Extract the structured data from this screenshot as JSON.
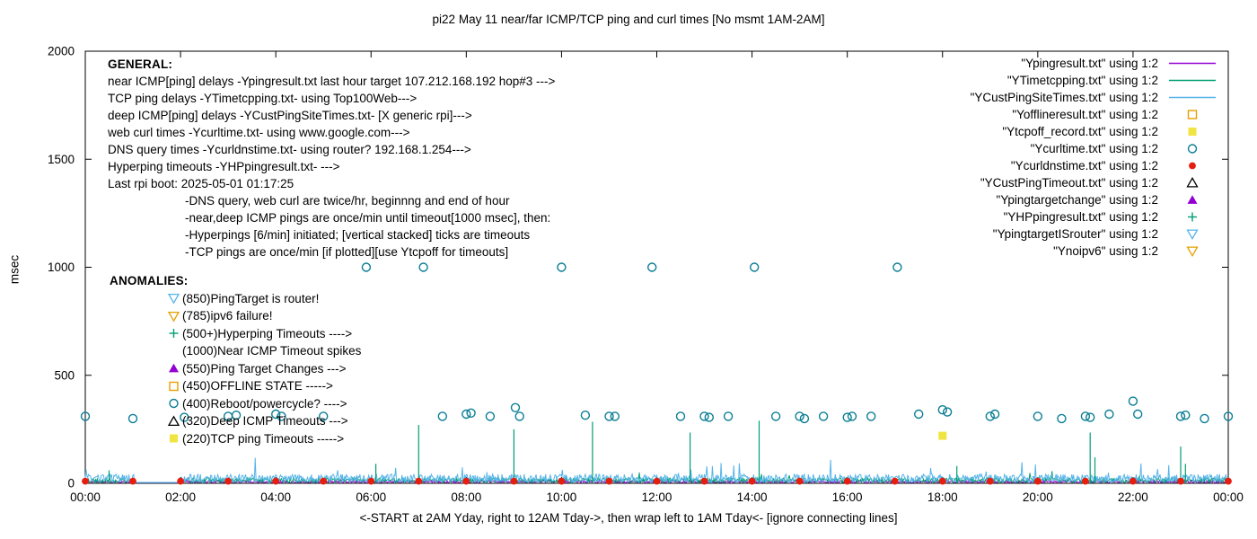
{
  "chart_data": {
    "type": "line+scatter",
    "title": "pi22 May 11  near/far ICMP/TCP ping and curl times [No msmt 1AM-2AM]",
    "ylabel": "msec",
    "xlabel": "<-START at 2AM Yday, right to 12AM Tday->, then wrap left to 1AM Tday<- [ignore connecting lines]",
    "ylim": [
      0,
      2000
    ],
    "yticks": [
      0,
      500,
      1000,
      1500,
      2000
    ],
    "xticks": [
      "00:00",
      "02:00",
      "04:00",
      "06:00",
      "08:00",
      "10:00",
      "12:00",
      "14:00",
      "16:00",
      "18:00",
      "20:00",
      "22:00",
      "00:00"
    ],
    "x_hours_range": [
      0,
      24
    ],
    "grid": false,
    "legend_position": "top-right-inside",
    "colors": {
      "purple": "#9400d3",
      "green": "#009e73",
      "lightblue": "#56b4e9",
      "orange": "#e69f00",
      "yellow": "#f0e442",
      "tealblue": "#0a7e94",
      "red": "#e51e10",
      "black": "#000000"
    },
    "legend": [
      {
        "label": "\"Ypingresult.txt\" using 1:2",
        "marker": "line",
        "color": "purple"
      },
      {
        "label": "\"YTimetcpping.txt\" using 1:2",
        "marker": "line",
        "color": "green"
      },
      {
        "label": "\"YCustPingSiteTimes.txt\" using 1:2",
        "marker": "line",
        "color": "lightblue"
      },
      {
        "label": "\"Yofflineresult.txt\" using 1:2",
        "marker": "square-open",
        "color": "orange"
      },
      {
        "label": "\"Ytcpoff_record.txt\" using 1:2",
        "marker": "square-filled",
        "color": "yellow"
      },
      {
        "label": "\"Ycurltime.txt\" using 1:2",
        "marker": "circle-open",
        "color": "tealblue"
      },
      {
        "label": "\"Ycurldnstime.txt\" using 1:2",
        "marker": "circle-filled",
        "color": "red"
      },
      {
        "label": "\"YCustPingTimeout.txt\" using 1:2",
        "marker": "triangle-up-open",
        "color": "black"
      },
      {
        "label": "\"Ypingtargetchange\" using 1:2",
        "marker": "triangle-up-filled",
        "color": "purple"
      },
      {
        "label": "\"YHPpingresult.txt\" using 1:2",
        "marker": "plus",
        "color": "green"
      },
      {
        "label": "\"YpingtargetISrouter\" using 1:2",
        "marker": "triangle-down-open",
        "color": "lightblue"
      },
      {
        "label": "\"Ynoipv6\" using 1:2",
        "marker": "triangle-down-open",
        "color": "orange"
      }
    ],
    "noise": {
      "gap_hours": [
        1,
        2
      ],
      "series": [
        {
          "name": "Ypingresult",
          "color": "purple",
          "seed": 11,
          "base": 2,
          "amp": 10,
          "bump_prob": 0.005,
          "bump_amp": 20
        },
        {
          "name": "YTimetcpping",
          "color": "green",
          "seed": 22,
          "base": 3,
          "amp": 22,
          "bump_prob": 0.01,
          "bump_amp": 45
        },
        {
          "name": "YCustPingSiteTimes",
          "color": "lightblue",
          "seed": 33,
          "base": 4,
          "amp": 38,
          "bump_prob": 0.02,
          "bump_amp": 80
        }
      ]
    },
    "spikes": {
      "name": "near-ICMP-timeout-spikes",
      "color": "green",
      "points": [
        [
          0.5,
          60
        ],
        [
          6.1,
          90
        ],
        [
          7.0,
          270
        ],
        [
          9.0,
          250
        ],
        [
          10.65,
          285
        ],
        [
          12.7,
          235
        ],
        [
          14.15,
          290
        ],
        [
          18.3,
          80
        ],
        [
          21.1,
          235
        ],
        [
          21.2,
          120
        ],
        [
          23.0,
          170
        ],
        [
          23.1,
          90
        ]
      ]
    },
    "curl_circles": {
      "name": "Ycurltime",
      "color": "tealblue",
      "points": [
        [
          0.0,
          310
        ],
        [
          1.0,
          300
        ],
        [
          2.08,
          305
        ],
        [
          3.0,
          310
        ],
        [
          3.17,
          315
        ],
        [
          4.0,
          320
        ],
        [
          4.12,
          310
        ],
        [
          5.0,
          310
        ],
        [
          5.9,
          1000
        ],
        [
          7.1,
          1000
        ],
        [
          7.5,
          310
        ],
        [
          8.0,
          320
        ],
        [
          8.1,
          325
        ],
        [
          8.5,
          310
        ],
        [
          9.03,
          350
        ],
        [
          9.12,
          310
        ],
        [
          10.0,
          1000
        ],
        [
          10.5,
          315
        ],
        [
          11.0,
          310
        ],
        [
          11.12,
          310
        ],
        [
          11.9,
          1000
        ],
        [
          12.5,
          310
        ],
        [
          13.0,
          310
        ],
        [
          13.1,
          305
        ],
        [
          13.5,
          310
        ],
        [
          14.05,
          1000
        ],
        [
          14.5,
          310
        ],
        [
          15.0,
          310
        ],
        [
          15.1,
          300
        ],
        [
          15.5,
          310
        ],
        [
          16.0,
          305
        ],
        [
          16.1,
          310
        ],
        [
          16.5,
          310
        ],
        [
          17.05,
          1000
        ],
        [
          17.5,
          320
        ],
        [
          18.0,
          340
        ],
        [
          18.1,
          330
        ],
        [
          19.0,
          310
        ],
        [
          19.1,
          320
        ],
        [
          20.0,
          310
        ],
        [
          20.5,
          300
        ],
        [
          21.0,
          310
        ],
        [
          21.1,
          305
        ],
        [
          21.5,
          320
        ],
        [
          22.0,
          380
        ],
        [
          22.1,
          320
        ],
        [
          23.0,
          310
        ],
        [
          23.1,
          315
        ],
        [
          23.5,
          300
        ],
        [
          24.0,
          310
        ]
      ]
    },
    "dns_dots": {
      "name": "Ycurldnstime",
      "color": "red",
      "value": 10,
      "hours": [
        0,
        1,
        2,
        3,
        4,
        5,
        6,
        7,
        8,
        9,
        10,
        11,
        12,
        13,
        14,
        15,
        16,
        17,
        18,
        19,
        20,
        21,
        22,
        23,
        24
      ]
    },
    "tcp_timeout_squares": {
      "name": "Ytcpoff_record",
      "color": "yellow",
      "points": [
        [
          18.0,
          220
        ]
      ]
    }
  },
  "annotations": {
    "general": {
      "heading": "GENERAL:",
      "lines": [
        "near ICMP[ping] delays -Ypingresult.txt last hour target 107.212.168.192 hop#3 --->",
        "TCP ping delays -YTimetcpping.txt- using Top100Web--->",
        "deep ICMP[ping] delays -YCustPingSiteTimes.txt- [X generic rpi]--->",
        "web curl times -Ycurltime.txt- using www.google.com--->",
        "DNS query times -Ycurldnstime.txt- using router? 192.168.1.254--->",
        "Hyperping timeouts -YHPpingresult.txt- --->",
        "Last rpi boot: 2025-05-01 01:17:25"
      ],
      "notes": [
        "-DNS query, web curl are twice/hr, beginnng and end of hour",
        "-near,deep ICMP pings are once/min until timeout[1000 msec], then:",
        "-Hyperpings [6/min] initiated; [vertical stacked] ticks are timeouts",
        "-TCP pings are once/min [if plotted][use Ytcpoff for timeouts]"
      ]
    },
    "anomalies": {
      "heading": "ANOMALIES:",
      "items": [
        {
          "icon": "triangle-down-open",
          "color": "lightblue",
          "text": "(850)PingTarget is router!"
        },
        {
          "icon": "triangle-down-open",
          "color": "orange",
          "text": "(785)ipv6 failure!"
        },
        {
          "icon": "plus",
          "color": "green",
          "text": "(500+)Hyperping Timeouts ---->"
        },
        {
          "icon": "none",
          "color": "black",
          "text": "(1000)Near ICMP Timeout spikes"
        },
        {
          "icon": "triangle-up-filled",
          "color": "purple",
          "text": "(550)Ping Target Changes --->"
        },
        {
          "icon": "square-open",
          "color": "orange",
          "text": "(450)OFFLINE STATE ----->"
        },
        {
          "icon": "circle-open",
          "color": "tealblue",
          "text": "(400)Reboot/powercycle? ---->"
        },
        {
          "icon": "triangle-up-open",
          "color": "black",
          "text": "(320)Deep ICMP Timeouts --->"
        },
        {
          "icon": "square-filled",
          "color": "yellow",
          "text": "(220)TCP ping Timeouts ----->"
        }
      ]
    }
  }
}
